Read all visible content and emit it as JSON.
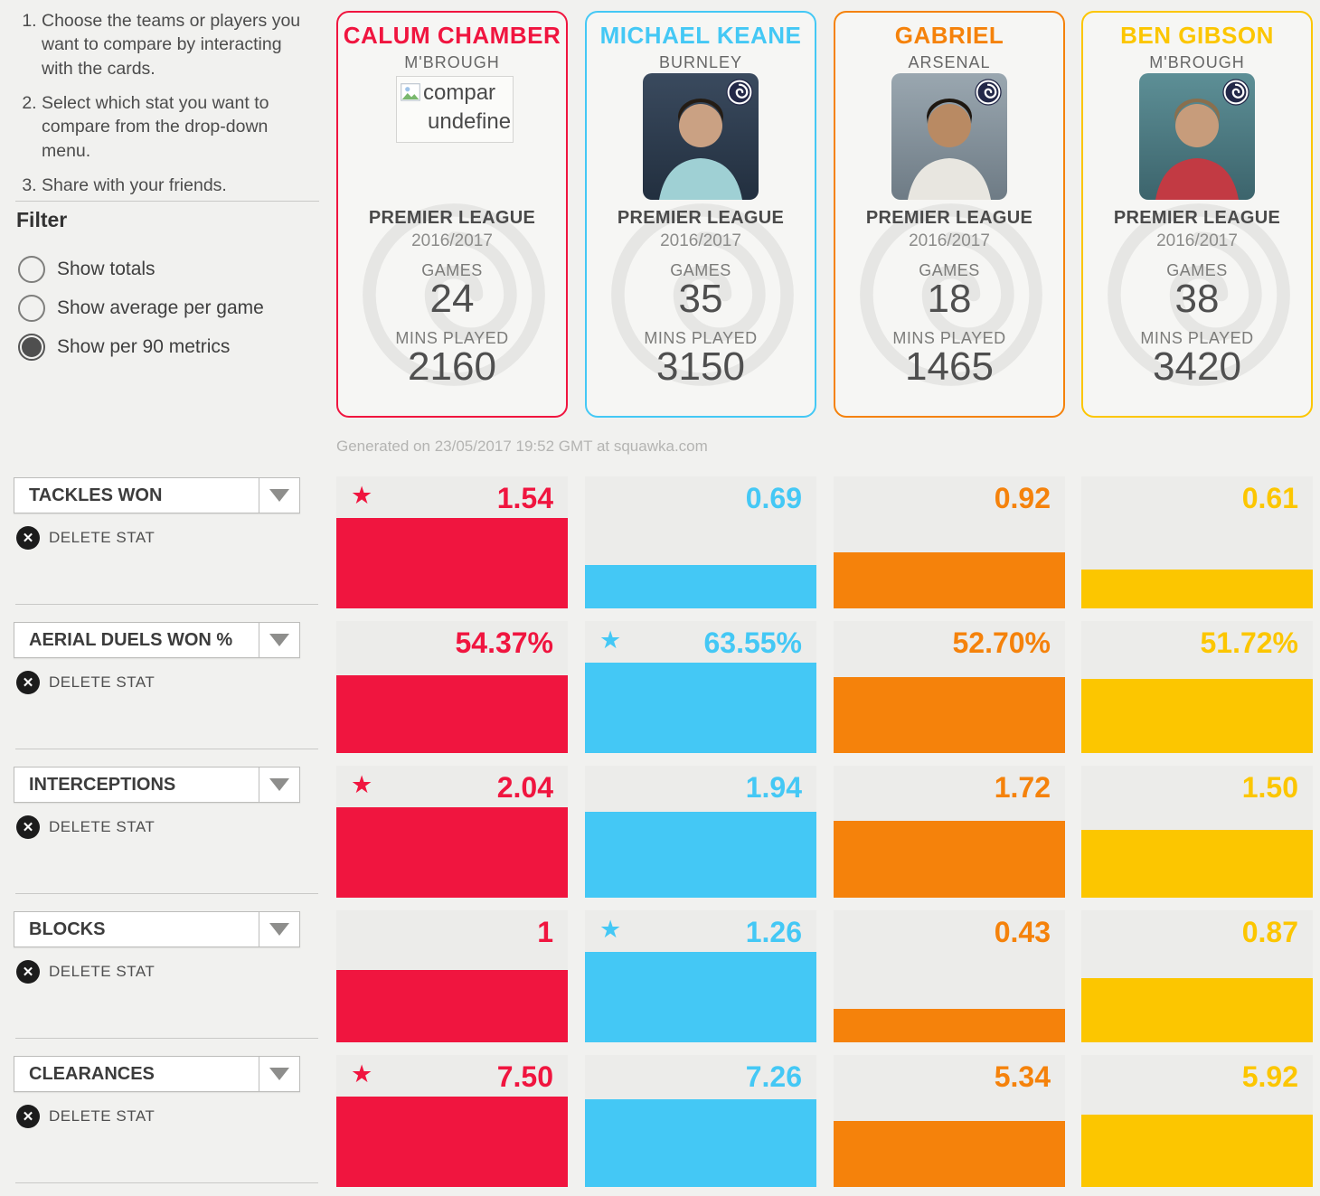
{
  "sidebar": {
    "instructions": [
      "Choose the teams or players you want to compare by interacting with the cards.",
      "Select which stat you want to compare from the drop-down menu.",
      "Share with your friends."
    ],
    "filter_title": "Filter",
    "filter_options": [
      {
        "label": "Show totals",
        "selected": false
      },
      {
        "label": "Show average per game",
        "selected": false
      },
      {
        "label": "Show per 90 metrics",
        "selected": true
      }
    ]
  },
  "card_labels": {
    "league": "PREMIER LEAGUE",
    "season": "2016/2017",
    "games": "GAMES",
    "mins": "MINS PLAYED"
  },
  "players": [
    {
      "name": "CALUM CHAMBER",
      "team": "M'BROUGH",
      "color": "#f0153f",
      "games": "24",
      "mins": "2160",
      "photo": "broken-image",
      "broken_alt_lines": [
        "compar",
        "undefine"
      ]
    },
    {
      "name": "MICHAEL KEANE",
      "team": "BURNLEY",
      "color": "#44c8f5",
      "games": "35",
      "mins": "3150",
      "photo": "player-photo"
    },
    {
      "name": "GABRIEL",
      "team": "ARSENAL",
      "color": "#f5820b",
      "games": "18",
      "mins": "1465",
      "photo": "player-photo"
    },
    {
      "name": "BEN GIBSON",
      "team": "M'BROUGH",
      "color": "#fcc600",
      "games": "38",
      "mins": "3420",
      "photo": "player-photo"
    }
  ],
  "generated_line": "Generated on 23/05/2017 19:52 GMT at squawka.com",
  "labels": {
    "delete_stat": "DELETE STAT"
  },
  "chart_data": {
    "type": "bar",
    "categories": [
      "CALUM CHAMBER",
      "MICHAEL KEANE",
      "GABRIEL",
      "BEN GIBSON"
    ],
    "series_colors": [
      "#f0153f",
      "#44c8f5",
      "#f5820b",
      "#fcc600"
    ],
    "series": [
      {
        "stat": "TACKLES WON",
        "values": [
          1.54,
          0.69,
          0.92,
          0.61
        ],
        "display": [
          "1.54",
          "0.69",
          "0.92",
          "0.61"
        ],
        "best_index": 0
      },
      {
        "stat": "AERIAL DUELS WON %",
        "values": [
          54.37,
          63.55,
          52.7,
          51.72
        ],
        "display": [
          "54.37%",
          "63.55%",
          "52.70%",
          "51.72%"
        ],
        "best_index": 1
      },
      {
        "stat": "INTERCEPTIONS",
        "values": [
          2.04,
          1.94,
          1.72,
          1.5
        ],
        "display": [
          "2.04",
          "1.94",
          "1.72",
          "1.50"
        ],
        "best_index": 0
      },
      {
        "stat": "BLOCKS",
        "values": [
          1,
          1.26,
          0.43,
          0.87
        ],
        "display": [
          "1",
          "1.26",
          "0.43",
          "0.87"
        ],
        "best_index": 1
      },
      {
        "stat": "CLEARANCES",
        "values": [
          7.5,
          7.26,
          5.34,
          5.92
        ],
        "display": [
          "7.50",
          "7.26",
          "5.34",
          "5.92"
        ],
        "best_index": 0
      }
    ],
    "legend_position": "none",
    "grid": false
  }
}
